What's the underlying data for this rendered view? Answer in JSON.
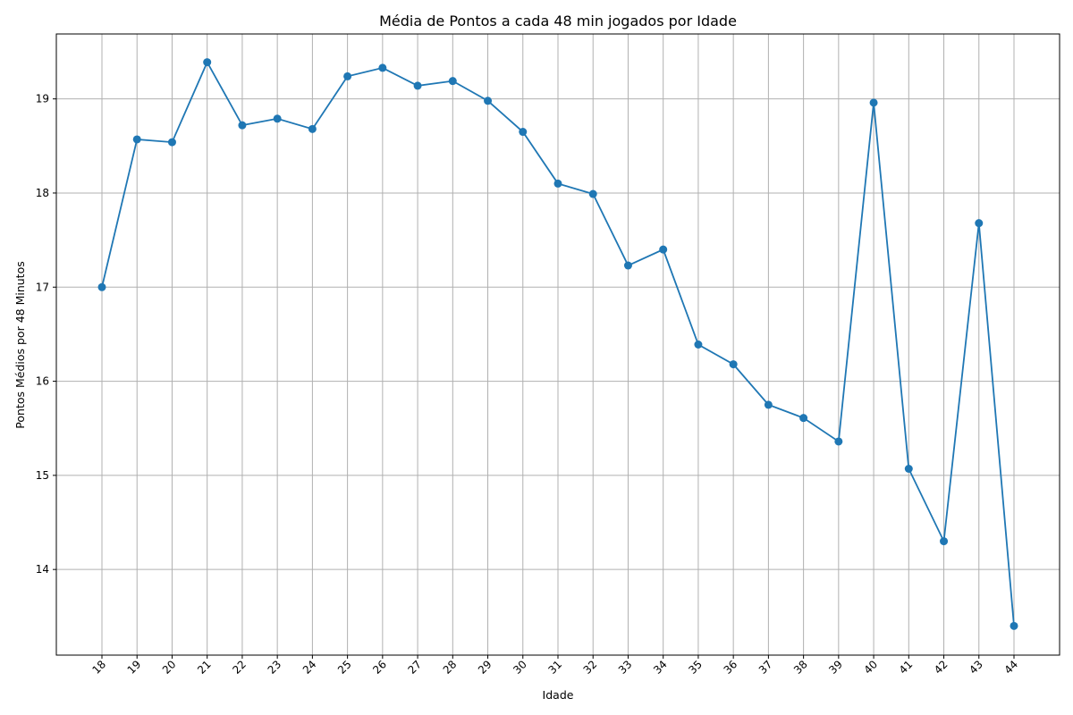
{
  "chart_data": {
    "type": "line",
    "title": "Média de Pontos a cada 48 min jogados por Idade",
    "xlabel": "Idade",
    "ylabel": "Pontos Médios por 48 Minutos",
    "x": [
      "18",
      "19",
      "20",
      "21",
      "22",
      "23",
      "24",
      "25",
      "26",
      "27",
      "28",
      "29",
      "30",
      "31",
      "32",
      "33",
      "34",
      "35",
      "36",
      "37",
      "38",
      "39",
      "40",
      "41",
      "42",
      "43",
      "44"
    ],
    "series": [
      {
        "color": "#1f77b4",
        "values": [
          17.0,
          18.57,
          18.54,
          19.39,
          18.72,
          18.79,
          18.68,
          19.24,
          19.33,
          19.14,
          19.19,
          18.98,
          18.65,
          18.1,
          17.99,
          17.23,
          17.4,
          16.39,
          16.18,
          15.75,
          15.61,
          15.36,
          18.96,
          15.07,
          14.3,
          17.68,
          13.4
        ]
      }
    ],
    "yticks": [
      14,
      15,
      16,
      17,
      18,
      19
    ],
    "ylim": [
      13.09,
      19.69
    ],
    "grid": true,
    "x_tick_rotation": -45
  }
}
